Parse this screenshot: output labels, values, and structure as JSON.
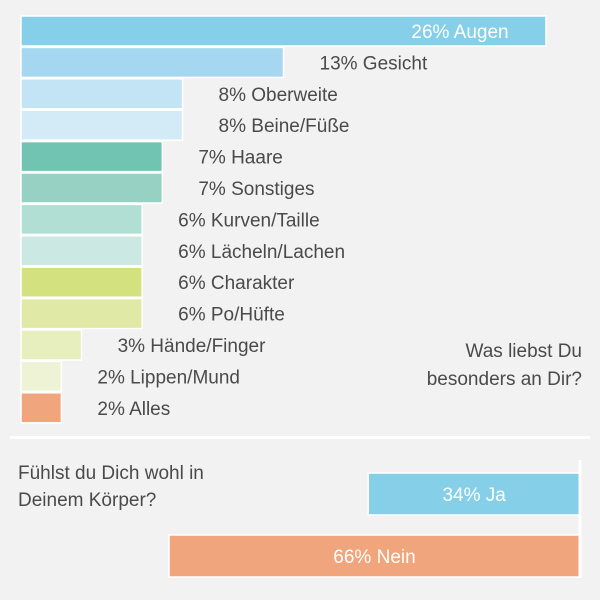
{
  "question_1": {
    "line1": "Was liebst Du",
    "line2": "besonders an Dir?"
  },
  "question_2": {
    "line1": "Fühlst du Dich wohl in",
    "line2": "Deinem Körper?"
  },
  "chart_data": [
    {
      "type": "bar",
      "orientation": "horizontal",
      "categories": [
        "Augen",
        "Gesicht",
        "Oberweite",
        "Beine/Füße",
        "Haare",
        "Sonstiges",
        "Kurven/Taille",
        "Lächeln/Lachen",
        "Charakter",
        "Po/Hüfte",
        "Hände/Finger",
        "Lippen/Mund",
        "Alles"
      ],
      "values": [
        26,
        13,
        8,
        8,
        7,
        7,
        6,
        6,
        6,
        6,
        3,
        2,
        2
      ],
      "labels": [
        "26% Augen",
        "13% Gesicht",
        "8% Oberweite",
        "8% Beine/Füße",
        "7% Haare",
        "7% Sonstiges",
        "6% Kurven/Taille",
        "6% Lächeln/Lachen",
        "6% Charakter",
        "6% Po/Hüfte",
        "3% Hände/Finger",
        "2% Lippen/Mund",
        "2% Alles"
      ],
      "colors": [
        "#86cfe8",
        "#a5d8f0",
        "#c2e4f4",
        "#d2ebf7",
        "#72c4b2",
        "#96d1c3",
        "#b1dfd4",
        "#cce8e2",
        "#d4e17f",
        "#e1e9a6",
        "#e7efbf",
        "#eef3d5",
        "#f0a57c"
      ],
      "unit": "%"
    },
    {
      "type": "bar",
      "orientation": "horizontal",
      "categories": [
        "Ja",
        "Nein"
      ],
      "values": [
        34,
        66
      ],
      "labels": [
        "34% Ja",
        "66% Nein"
      ],
      "colors": [
        "#86cfe8",
        "#f0a57c"
      ],
      "unit": "%"
    }
  ]
}
